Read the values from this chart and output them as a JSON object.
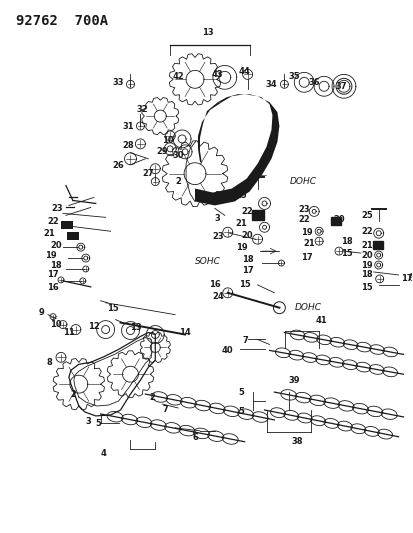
{
  "title": "92762  700A",
  "bg_color": "#ffffff",
  "fg_color": "#1a1a1a",
  "fig_width": 4.14,
  "fig_height": 5.33,
  "dpi": 100,
  "sohc_label": "SOHC",
  "dohc_label1": "DOHC",
  "dohc_label2": "DOHC",
  "font_size_label": 6.0,
  "font_size_title": 10.0,
  "font_size_section": 6.5
}
